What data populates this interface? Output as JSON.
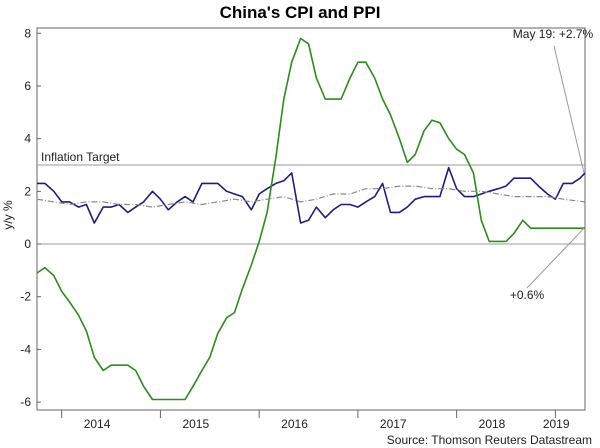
{
  "chart_data": {
    "type": "line",
    "title": "China's CPI and PPI",
    "ylabel": "y/y %",
    "ylim": [
      -6.3,
      8.2
    ],
    "xlim": [
      2013.75,
      2019.3
    ],
    "y_ticks": [
      -6,
      -4,
      -2,
      0,
      2,
      4,
      6,
      8
    ],
    "x_tick_labels": [
      {
        "label": "2014",
        "x": 2014.0
      },
      {
        "label": "2015",
        "x": 2015.0
      },
      {
        "label": "2016",
        "x": 2016.0
      },
      {
        "label": "2017",
        "x": 2017.0
      },
      {
        "label": "2018",
        "x": 2018.0
      },
      {
        "label": "2019",
        "x": 2019.0
      }
    ],
    "reference_lines": [
      {
        "label": "Inflation Target",
        "y": 3.0
      },
      {
        "label": "",
        "y": 0.0
      }
    ],
    "series": [
      {
        "role": "cpi",
        "color": "#1f1f7a",
        "style": "solid",
        "x": [
          2013.75,
          2013.83,
          2013.92,
          2014.0,
          2014.08,
          2014.17,
          2014.25,
          2014.33,
          2014.42,
          2014.5,
          2014.58,
          2014.67,
          2014.75,
          2014.83,
          2014.92,
          2015.0,
          2015.08,
          2015.17,
          2015.25,
          2015.33,
          2015.42,
          2015.5,
          2015.58,
          2015.67,
          2015.75,
          2015.83,
          2015.92,
          2016.0,
          2016.08,
          2016.17,
          2016.25,
          2016.33,
          2016.42,
          2016.5,
          2016.58,
          2016.67,
          2016.75,
          2016.83,
          2016.92,
          2017.0,
          2017.08,
          2017.17,
          2017.25,
          2017.33,
          2017.42,
          2017.5,
          2017.58,
          2017.67,
          2017.75,
          2017.83,
          2017.92,
          2018.0,
          2018.08,
          2018.17,
          2018.25,
          2018.33,
          2018.42,
          2018.5,
          2018.58,
          2018.67,
          2018.75,
          2018.83,
          2018.92,
          2019.0,
          2019.08,
          2019.17,
          2019.25,
          2019.3
        ],
        "values": [
          2.3,
          2.3,
          2.0,
          1.6,
          1.6,
          1.4,
          1.5,
          0.8,
          1.4,
          1.4,
          1.5,
          1.2,
          1.4,
          1.6,
          2.0,
          1.7,
          1.3,
          1.6,
          1.8,
          1.6,
          2.3,
          2.3,
          2.3,
          2.0,
          1.9,
          1.8,
          1.3,
          1.9,
          2.1,
          2.3,
          2.4,
          2.7,
          0.8,
          0.9,
          1.4,
          1.0,
          1.3,
          1.5,
          1.5,
          1.4,
          1.6,
          1.8,
          2.3,
          1.2,
          1.2,
          1.4,
          1.7,
          1.8,
          1.8,
          1.8,
          2.9,
          2.1,
          1.8,
          1.8,
          1.9,
          2.0,
          2.1,
          2.2,
          2.5,
          2.5,
          2.5,
          2.2,
          1.9,
          1.7,
          2.3,
          2.3,
          2.5,
          2.7
        ]
      },
      {
        "role": "ppi",
        "color": "#2e8b1e",
        "style": "solid",
        "x": [
          2013.75,
          2013.83,
          2013.92,
          2014.0,
          2014.08,
          2014.17,
          2014.25,
          2014.33,
          2014.42,
          2014.5,
          2014.58,
          2014.67,
          2014.75,
          2014.83,
          2014.92,
          2015.0,
          2015.08,
          2015.17,
          2015.25,
          2015.33,
          2015.42,
          2015.5,
          2015.58,
          2015.67,
          2015.75,
          2015.83,
          2015.92,
          2016.0,
          2016.08,
          2016.17,
          2016.25,
          2016.33,
          2016.42,
          2016.5,
          2016.58,
          2016.67,
          2016.75,
          2016.83,
          2016.92,
          2017.0,
          2017.08,
          2017.17,
          2017.25,
          2017.33,
          2017.42,
          2017.5,
          2017.58,
          2017.67,
          2017.75,
          2017.83,
          2017.92,
          2018.0,
          2018.08,
          2018.17,
          2018.25,
          2018.33,
          2018.42,
          2018.5,
          2018.58,
          2018.67,
          2018.75,
          2018.83,
          2018.92,
          2019.0,
          2019.08,
          2019.17,
          2019.25,
          2019.3
        ],
        "values": [
          -1.1,
          -0.9,
          -1.2,
          -1.8,
          -2.2,
          -2.7,
          -3.3,
          -4.3,
          -4.8,
          -4.6,
          -4.6,
          -4.6,
          -4.8,
          -5.4,
          -5.9,
          -5.9,
          -5.9,
          -5.9,
          -5.9,
          -5.4,
          -4.8,
          -4.3,
          -3.4,
          -2.8,
          -2.6,
          -1.7,
          -0.8,
          0.1,
          1.2,
          3.3,
          5.5,
          6.9,
          7.8,
          7.6,
          6.3,
          5.5,
          5.5,
          5.5,
          6.3,
          6.9,
          6.9,
          6.3,
          5.5,
          4.9,
          4.0,
          3.1,
          3.4,
          4.3,
          4.7,
          4.6,
          4.0,
          3.6,
          3.4,
          2.7,
          0.9,
          0.1,
          0.1,
          0.1,
          0.4,
          0.9,
          0.6,
          0.6,
          0.6,
          0.6,
          0.6,
          0.6,
          0.6,
          0.6
        ]
      },
      {
        "role": "core",
        "color": "#8a8a8a",
        "style": "dashdot",
        "x": [
          2013.75,
          2013.92,
          2014.08,
          2014.25,
          2014.42,
          2014.58,
          2014.75,
          2014.92,
          2015.08,
          2015.25,
          2015.42,
          2015.58,
          2015.75,
          2015.92,
          2016.08,
          2016.25,
          2016.42,
          2016.58,
          2016.75,
          2016.92,
          2017.08,
          2017.25,
          2017.42,
          2017.58,
          2017.75,
          2017.92,
          2018.08,
          2018.25,
          2018.42,
          2018.58,
          2018.75,
          2018.92,
          2019.08,
          2019.3
        ],
        "values": [
          1.7,
          1.6,
          1.5,
          1.6,
          1.6,
          1.5,
          1.5,
          1.4,
          1.5,
          1.6,
          1.5,
          1.6,
          1.7,
          1.6,
          1.7,
          1.8,
          1.6,
          1.7,
          1.9,
          1.9,
          2.1,
          2.1,
          2.2,
          2.2,
          2.1,
          2.1,
          2.0,
          2.0,
          1.9,
          1.8,
          1.8,
          1.8,
          1.7,
          1.6
        ]
      }
    ],
    "annotations": [
      {
        "text": "May 19: +2.7%",
        "point_x": 2019.3,
        "point_y": 2.7
      },
      {
        "text": "+0.6%",
        "point_x": 2019.3,
        "point_y": 0.6
      }
    ],
    "source": "Source: Thomson Reuters Datastream"
  }
}
